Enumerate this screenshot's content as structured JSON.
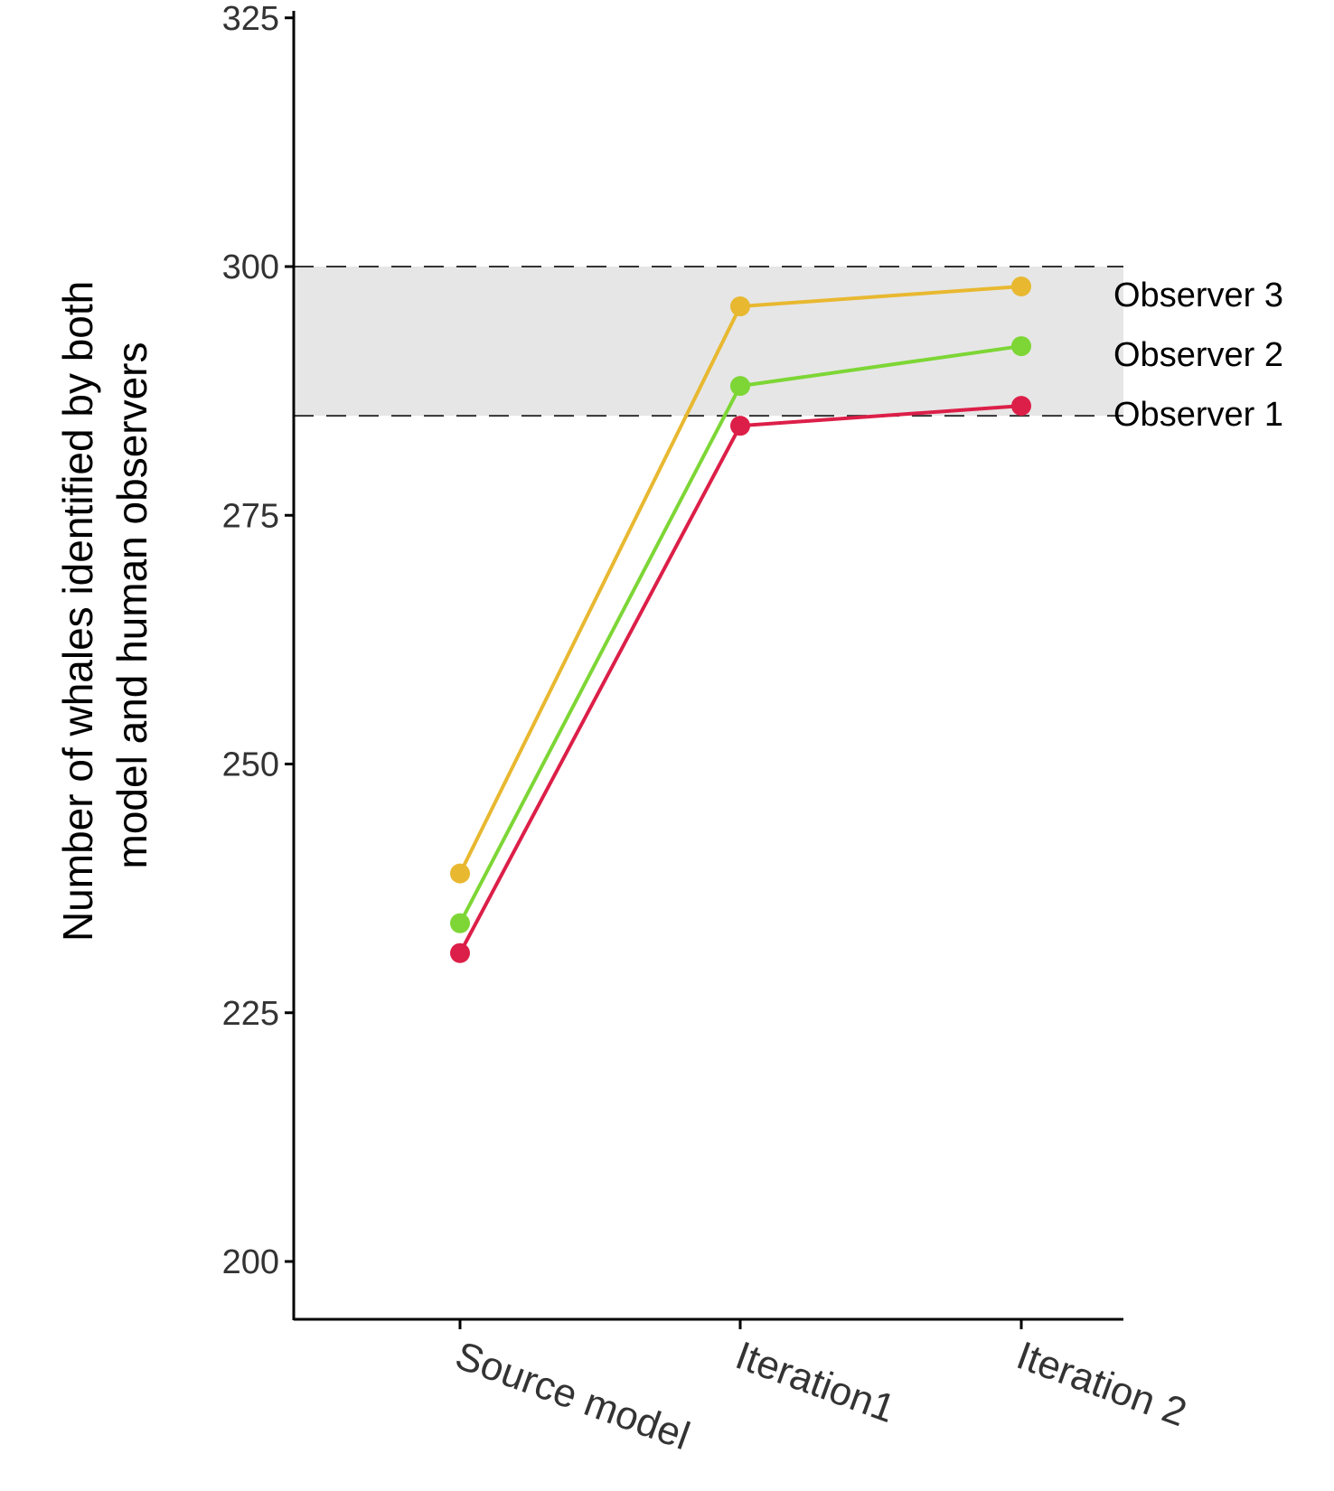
{
  "chart_data": {
    "type": "line",
    "categories": [
      "Source model",
      "Iteration1",
      "Iteration 2"
    ],
    "ylabel_lines": [
      "Number of whales identified by both",
      "model and human observers"
    ],
    "ylim": [
      195,
      326
    ],
    "yticks": [
      200,
      225,
      250,
      275,
      300,
      325
    ],
    "grid": false,
    "shaded_band": {
      "from": 285,
      "to": 300,
      "color": "#e6e6e6",
      "border_style": "dashed"
    },
    "series": [
      {
        "name": "Observer 3",
        "color": "#e8b830",
        "values": [
          239,
          296,
          298
        ]
      },
      {
        "name": "Observer 2",
        "color": "#7dd635",
        "values": [
          234,
          288,
          292
        ]
      },
      {
        "name": "Observer 1",
        "color": "#dc1f48",
        "values": [
          231,
          284,
          286
        ]
      }
    ]
  }
}
